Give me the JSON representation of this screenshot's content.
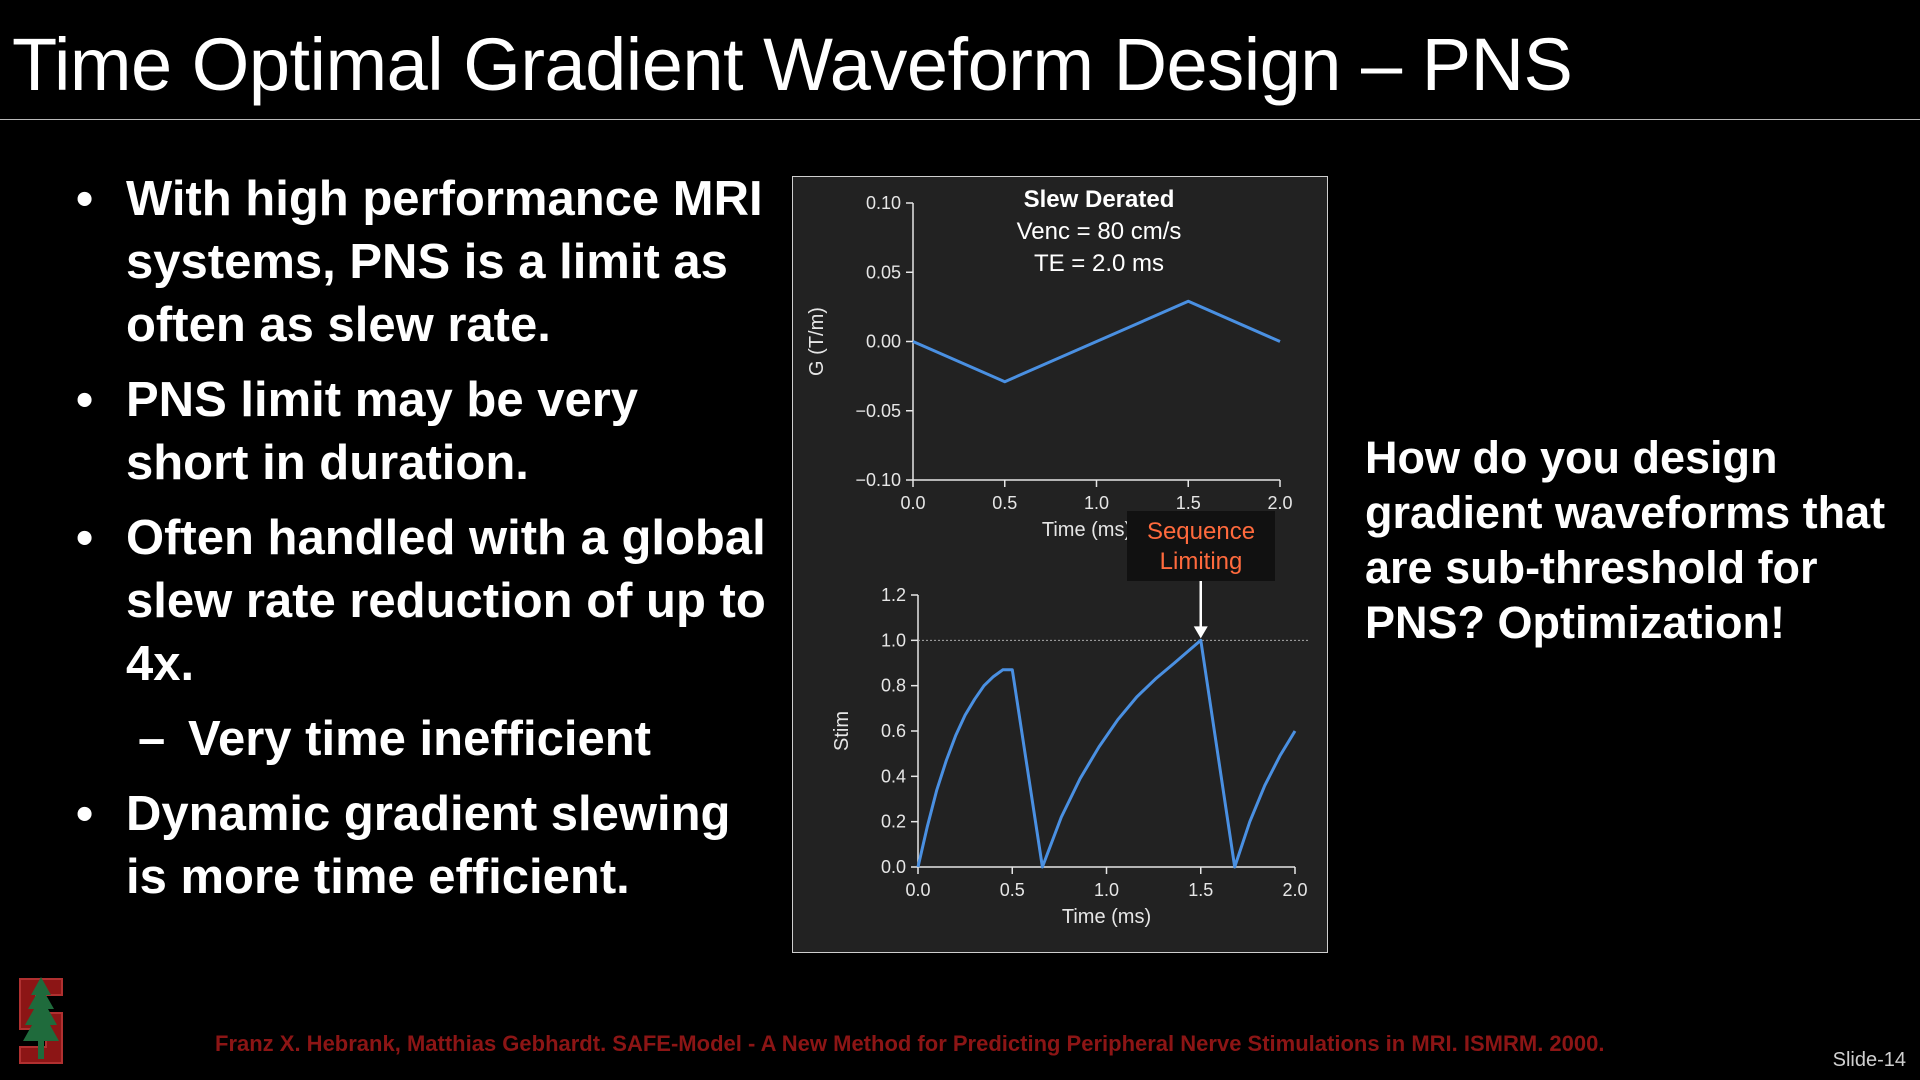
{
  "slide": {
    "title": "Time Optimal Gradient Waveform Design – PNS",
    "bullets": [
      "With high performance MRI systems, PNS is a limit as often as slew rate.",
      "PNS limit may be very short in duration.",
      "Often handled with a global slew rate reduction of up to 4x."
    ],
    "sub_bullet": "Very time inefficient",
    "last_bullet": "Dynamic gradient slewing is more time efficient.",
    "question": "How do you design gradient waveforms that are sub-threshold for PNS? Optimization!",
    "citation": "Franz X. Hebrank, Matthias Gebhardt. SAFE-Model - A New Method for Predicting Peripheral Nerve Stimulations in MRI. ISMRM. 2000.",
    "slide_number": "Slide-14",
    "logo_icon": "stanford-tree-logo-icon",
    "colors": {
      "background": "#000000",
      "citation": "#8c1515",
      "series": "#4a90e2",
      "annotation": "#ff6a3d",
      "panel": "#222222"
    }
  },
  "chart_data": [
    {
      "type": "line",
      "title_lines": [
        "Slew Derated",
        "Venc = 80 cm/s",
        "TE = 2.0 ms"
      ],
      "xlabel": "Time (ms)",
      "ylabel": "G (T/m)",
      "xlim": [
        0,
        2.0
      ],
      "ylim": [
        -0.1,
        0.1
      ],
      "x_ticks": [
        "0.0",
        "0.5",
        "1.0",
        "1.5",
        "2.0"
      ],
      "y_ticks": [
        "0.10",
        "0.05",
        "0.00",
        "−0.05",
        "−0.10"
      ],
      "x": [
        0.0,
        0.5,
        1.5,
        2.0
      ],
      "y": [
        0.0,
        -0.029,
        0.029,
        0.0
      ]
    },
    {
      "type": "line",
      "xlabel": "Time (ms)",
      "ylabel": "Stim",
      "xlim": [
        0,
        2.0
      ],
      "ylim": [
        0,
        1.2
      ],
      "x_ticks": [
        "0.0",
        "0.5",
        "1.0",
        "1.5",
        "2.0"
      ],
      "y_ticks": [
        "1.2",
        "1.0",
        "0.8",
        "0.6",
        "0.4",
        "0.2",
        "0.0"
      ],
      "threshold": 1.0,
      "x": [
        0.0,
        0.05,
        0.1,
        0.15,
        0.2,
        0.25,
        0.3,
        0.35,
        0.4,
        0.45,
        0.5,
        0.66,
        0.76,
        0.86,
        0.96,
        1.06,
        1.16,
        1.26,
        1.36,
        1.5,
        1.68,
        1.76,
        1.84,
        1.92,
        2.0
      ],
      "y": [
        0.0,
        0.18,
        0.34,
        0.47,
        0.58,
        0.67,
        0.74,
        0.8,
        0.84,
        0.87,
        0.87,
        0.0,
        0.22,
        0.39,
        0.53,
        0.65,
        0.75,
        0.83,
        0.9,
        1.0,
        0.0,
        0.2,
        0.36,
        0.49,
        0.6
      ],
      "annotation": {
        "line1": "Sequence",
        "line2": "Limiting",
        "x": 1.5,
        "y": 1.0
      }
    }
  ]
}
